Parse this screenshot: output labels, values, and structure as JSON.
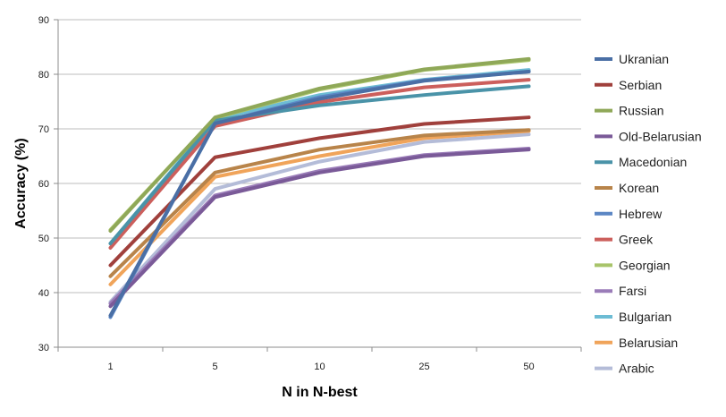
{
  "chart_data": {
    "type": "line",
    "categories": [
      "1",
      "5",
      "10",
      "25",
      "50"
    ],
    "xlabel": "N in N-best",
    "ylabel": "Accuracy (%)",
    "ylim": [
      30,
      90
    ],
    "yticks": [
      "30",
      "40",
      "50",
      "60",
      "70",
      "80",
      "90"
    ],
    "grid": true,
    "legend_position": "right",
    "series": [
      {
        "name": "Ukranian",
        "color": "#4a6fa5",
        "values": [
          35.8,
          71.0,
          75.5,
          78.8,
          80.5
        ]
      },
      {
        "name": "Serbian",
        "color": "#a0403c",
        "values": [
          45.0,
          64.8,
          68.3,
          70.9,
          72.1
        ]
      },
      {
        "name": "Russian",
        "color": "#8fa858",
        "values": [
          51.3,
          72.1,
          77.4,
          80.9,
          82.8
        ]
      },
      {
        "name": "Old-Belarusian",
        "color": "#7a5a98",
        "values": [
          37.5,
          57.5,
          62.0,
          65.0,
          66.2
        ]
      },
      {
        "name": "Macedonian",
        "color": "#4a93a8",
        "values": [
          49.0,
          71.5,
          74.3,
          76.2,
          77.8
        ]
      },
      {
        "name": "Korean",
        "color": "#b8844a",
        "values": [
          43.0,
          62.0,
          66.2,
          68.8,
          69.8
        ]
      },
      {
        "name": "Hebrew",
        "color": "#5b86c4",
        "values": [
          35.5,
          71.0,
          75.8,
          78.9,
          80.5
        ]
      },
      {
        "name": "Greek",
        "color": "#cc5f5c",
        "values": [
          48.2,
          70.5,
          74.9,
          77.6,
          79.0
        ]
      },
      {
        "name": "Georgian",
        "color": "#a8c46a",
        "values": [
          51.5,
          72.0,
          77.2,
          80.8,
          82.6
        ]
      },
      {
        "name": "Farsi",
        "color": "#9a7cb8",
        "values": [
          38.0,
          57.8,
          62.3,
          65.2,
          66.4
        ]
      },
      {
        "name": "Bulgarian",
        "color": "#6dbcd4",
        "values": [
          49.0,
          71.8,
          76.2,
          79.0,
          80.8
        ]
      },
      {
        "name": "Belarusian",
        "color": "#f0a45a",
        "values": [
          41.5,
          61.2,
          65.0,
          68.3,
          69.6
        ]
      },
      {
        "name": "Arabic",
        "color": "#b4bcd8",
        "values": [
          38.3,
          59.0,
          64.0,
          67.6,
          69.0
        ]
      }
    ]
  }
}
